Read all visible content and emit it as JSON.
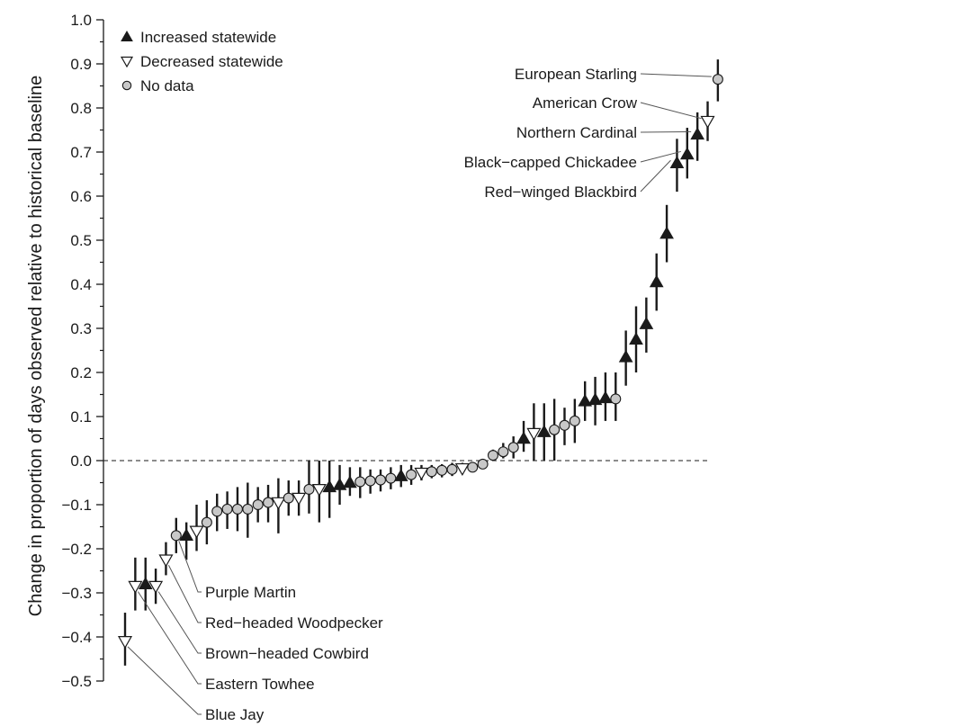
{
  "chart_data": {
    "type": "scatter",
    "title": "",
    "xlabel": "",
    "ylabel": "Change in proportion of days observed relative to historical baseline",
    "ylim": [
      -0.5,
      1.0
    ],
    "yticks": [
      "1.0",
      "0.9",
      "0.8",
      "0.7",
      "0.6",
      "0.5",
      "0.4",
      "0.3",
      "0.2",
      "0.1",
      "0.0",
      "-0.1",
      "-0.2",
      "-0.3",
      "-0.4",
      "-0.5"
    ],
    "reference_line": 0.0,
    "legend_position": "top-left",
    "legend": [
      {
        "label": "Increased statewide",
        "marker": "triangle-up"
      },
      {
        "label": "Decreased statewide",
        "marker": "triangle-down"
      },
      {
        "label": "No data",
        "marker": "circle"
      }
    ],
    "colors": {
      "filled": "#1a1a1a",
      "no_data": "#c8c8c8",
      "ink": "#1a1a1a"
    },
    "points": [
      {
        "y": -0.41,
        "lo": -0.465,
        "hi": -0.345,
        "marker": "down",
        "label": "Blue Jay"
      },
      {
        "y": -0.285,
        "lo": -0.34,
        "hi": -0.22,
        "marker": "down",
        "label": "Eastern Towhee"
      },
      {
        "y": -0.28,
        "lo": -0.34,
        "hi": -0.22,
        "marker": "up",
        "label": ""
      },
      {
        "y": -0.285,
        "lo": -0.325,
        "hi": -0.245,
        "marker": "down",
        "label": "Brown-headed Cowbird"
      },
      {
        "y": -0.225,
        "lo": -0.26,
        "hi": -0.185,
        "marker": "down",
        "label": "Red-headed Woodpecker"
      },
      {
        "y": -0.17,
        "lo": -0.21,
        "hi": -0.13,
        "marker": "circle",
        "label": "Purple Martin"
      },
      {
        "y": -0.17,
        "lo": -0.225,
        "hi": -0.14,
        "marker": "up",
        "label": ""
      },
      {
        "y": -0.16,
        "lo": -0.205,
        "hi": -0.1,
        "marker": "down",
        "label": ""
      },
      {
        "y": -0.14,
        "lo": -0.19,
        "hi": -0.09,
        "marker": "circle",
        "label": ""
      },
      {
        "y": -0.115,
        "lo": -0.16,
        "hi": -0.075,
        "marker": "circle",
        "label": ""
      },
      {
        "y": -0.11,
        "lo": -0.155,
        "hi": -0.07,
        "marker": "circle",
        "label": ""
      },
      {
        "y": -0.11,
        "lo": -0.16,
        "hi": -0.06,
        "marker": "circle",
        "label": ""
      },
      {
        "y": -0.11,
        "lo": -0.175,
        "hi": -0.05,
        "marker": "circle",
        "label": ""
      },
      {
        "y": -0.1,
        "lo": -0.14,
        "hi": -0.06,
        "marker": "circle",
        "label": ""
      },
      {
        "y": -0.095,
        "lo": -0.14,
        "hi": -0.055,
        "marker": "circle",
        "label": ""
      },
      {
        "y": -0.095,
        "lo": -0.165,
        "hi": -0.04,
        "marker": "down",
        "label": ""
      },
      {
        "y": -0.085,
        "lo": -0.125,
        "hi": -0.045,
        "marker": "circle",
        "label": ""
      },
      {
        "y": -0.085,
        "lo": -0.125,
        "hi": -0.045,
        "marker": "down",
        "label": ""
      },
      {
        "y": -0.065,
        "lo": -0.12,
        "hi": 0.0,
        "marker": "circle",
        "label": ""
      },
      {
        "y": -0.065,
        "lo": -0.14,
        "hi": 0.0,
        "marker": "down",
        "label": ""
      },
      {
        "y": -0.06,
        "lo": -0.13,
        "hi": 0.0,
        "marker": "up",
        "label": ""
      },
      {
        "y": -0.055,
        "lo": -0.1,
        "hi": -0.01,
        "marker": "up",
        "label": ""
      },
      {
        "y": -0.05,
        "lo": -0.08,
        "hi": -0.015,
        "marker": "up",
        "label": ""
      },
      {
        "y": -0.048,
        "lo": -0.085,
        "hi": -0.015,
        "marker": "circle",
        "label": ""
      },
      {
        "y": -0.046,
        "lo": -0.075,
        "hi": -0.02,
        "marker": "circle",
        "label": ""
      },
      {
        "y": -0.044,
        "lo": -0.07,
        "hi": -0.02,
        "marker": "circle",
        "label": ""
      },
      {
        "y": -0.04,
        "lo": -0.065,
        "hi": -0.015,
        "marker": "circle",
        "label": ""
      },
      {
        "y": -0.035,
        "lo": -0.06,
        "hi": -0.01,
        "marker": "up",
        "label": ""
      },
      {
        "y": -0.032,
        "lo": -0.055,
        "hi": -0.01,
        "marker": "circle",
        "label": ""
      },
      {
        "y": -0.028,
        "lo": -0.045,
        "hi": -0.01,
        "marker": "down",
        "label": ""
      },
      {
        "y": -0.025,
        "lo": -0.04,
        "hi": -0.01,
        "marker": "circle",
        "label": ""
      },
      {
        "y": -0.022,
        "lo": -0.038,
        "hi": -0.008,
        "marker": "circle",
        "label": ""
      },
      {
        "y": -0.02,
        "lo": -0.035,
        "hi": -0.005,
        "marker": "circle",
        "label": ""
      },
      {
        "y": -0.018,
        "lo": -0.03,
        "hi": -0.005,
        "marker": "down",
        "label": ""
      },
      {
        "y": -0.015,
        "lo": -0.025,
        "hi": -0.005,
        "marker": "circle",
        "label": ""
      },
      {
        "y": -0.008,
        "lo": -0.015,
        "hi": 0.0,
        "marker": "circle",
        "label": ""
      },
      {
        "y": 0.012,
        "lo": 0.0,
        "hi": 0.025,
        "marker": "circle",
        "label": ""
      },
      {
        "y": 0.02,
        "lo": 0.005,
        "hi": 0.04,
        "marker": "circle",
        "label": ""
      },
      {
        "y": 0.03,
        "lo": 0.005,
        "hi": 0.055,
        "marker": "circle",
        "label": ""
      },
      {
        "y": 0.05,
        "lo": 0.02,
        "hi": 0.09,
        "marker": "up",
        "label": ""
      },
      {
        "y": 0.062,
        "lo": 0.0,
        "hi": 0.13,
        "marker": "down",
        "label": ""
      },
      {
        "y": 0.065,
        "lo": 0.0,
        "hi": 0.13,
        "marker": "up",
        "label": ""
      },
      {
        "y": 0.07,
        "lo": 0.0,
        "hi": 0.14,
        "marker": "circle",
        "label": ""
      },
      {
        "y": 0.08,
        "lo": 0.035,
        "hi": 0.12,
        "marker": "circle",
        "label": ""
      },
      {
        "y": 0.09,
        "lo": 0.04,
        "hi": 0.14,
        "marker": "circle",
        "label": ""
      },
      {
        "y": 0.135,
        "lo": 0.09,
        "hi": 0.18,
        "marker": "up",
        "label": ""
      },
      {
        "y": 0.138,
        "lo": 0.08,
        "hi": 0.19,
        "marker": "up",
        "label": ""
      },
      {
        "y": 0.142,
        "lo": 0.09,
        "hi": 0.2,
        "marker": "up",
        "label": ""
      },
      {
        "y": 0.14,
        "lo": 0.09,
        "hi": 0.2,
        "marker": "circle",
        "label": ""
      },
      {
        "y": 0.235,
        "lo": 0.17,
        "hi": 0.295,
        "marker": "up",
        "label": ""
      },
      {
        "y": 0.275,
        "lo": 0.2,
        "hi": 0.35,
        "marker": "up",
        "label": ""
      },
      {
        "y": 0.31,
        "lo": 0.245,
        "hi": 0.37,
        "marker": "up",
        "label": ""
      },
      {
        "y": 0.405,
        "lo": 0.34,
        "hi": 0.47,
        "marker": "up",
        "label": ""
      },
      {
        "y": 0.515,
        "lo": 0.45,
        "hi": 0.58,
        "marker": "up",
        "label": ""
      },
      {
        "y": 0.675,
        "lo": 0.61,
        "hi": 0.73,
        "marker": "up",
        "label": "Red-winged Blackbird"
      },
      {
        "y": 0.695,
        "lo": 0.64,
        "hi": 0.755,
        "marker": "up",
        "label": "Black-capped Chickadee"
      },
      {
        "y": 0.74,
        "lo": 0.68,
        "hi": 0.79,
        "marker": "up",
        "label": "Northern Cardinal"
      },
      {
        "y": 0.77,
        "lo": 0.725,
        "hi": 0.815,
        "marker": "down",
        "label": "American Crow"
      },
      {
        "y": 0.865,
        "lo": 0.815,
        "hi": 0.91,
        "marker": "circle",
        "label": "European Starling"
      }
    ]
  }
}
